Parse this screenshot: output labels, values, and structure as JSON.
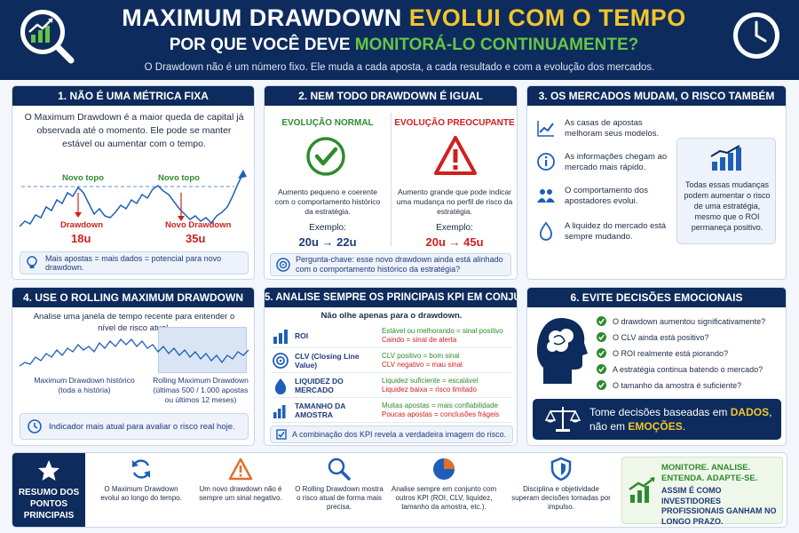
{
  "header": {
    "title_part1": "MAXIMUM DRAWDOWN ",
    "title_part2": "EVOLUI COM O TEMPO",
    "subtitle_part1": "POR QUE VOCÊ DEVE ",
    "subtitle_part2": "MONITORÁ-LO CONTINUAMENTE?",
    "description": "O Drawdown não é um número fixo. Ele muda a cada aposta, a cada resultado e com a evolução dos mercados.",
    "left_icon": "chart-magnifier-icon",
    "right_icon": "clock-icon"
  },
  "panel1": {
    "title": "1. NÃO É UMA MÉTRICA FIXA",
    "text": "O Maximum Drawdown é a maior queda de capital já observada até o momento. Ele pode se manter estável ou aumentar com o tempo.",
    "new_top_1": "Novo topo",
    "new_top_2": "Novo topo",
    "drawdown_label": "Drawdown",
    "drawdown_value": "18u",
    "new_drawdown_label": "Novo Drawdown",
    "new_drawdown_value": "35u",
    "tip": "Mais apostas = mais dados = potencial para novo drawdown."
  },
  "panel2": {
    "title": "2. NEM TODO DRAWDOWN É IGUAL",
    "normal": {
      "title": "EVOLUÇÃO NORMAL",
      "text": "Aumento pequeno e coerente com o comportamento histórico da estratégia.",
      "example_label": "Exemplo:",
      "example_value": "20u → 22u"
    },
    "worrying": {
      "title": "EVOLUÇÃO PREOCUPANTE",
      "text": "Aumento grande que pode indicar uma mudança no perfil de risco da estratégia.",
      "example_label": "Exemplo:",
      "example_value": "20u → 45u"
    },
    "tip": "Pergunta-chave: esse novo drawdown ainda está alinhado com o comportamento histórico da estratégia?"
  },
  "panel3": {
    "title": "3. OS MERCADOS MUDAM, O RISCO TAMBÉM",
    "items": [
      "As casas de apostas melhoram seus modelos.",
      "As informações chegam ao mercado mais rápido.",
      "O comportamento dos apostadores evolui.",
      "A liquidez do mercado está sempre mudando."
    ],
    "box_text": "Todas essas mudanças podem aumentar o risco de uma estratégia, mesmo que o ROI permaneça positivo."
  },
  "panel4": {
    "title": "4. USE O ROLLING MAXIMUM DRAWDOWN",
    "text": "Analise uma janela de tempo recente para entender o nível de risco atual.",
    "historic_label": "Maximum Drawdown histórico",
    "historic_sub": "(toda a história)",
    "rolling_label": "Rolling Maximum Drawdown",
    "rolling_sub": "(últimas 500 / 1.000 apostas ou últimos 12 meses)",
    "tip": "Indicador mais atual para avaliar o risco real hoje."
  },
  "panel5": {
    "title": "5. ANALISE SEMPRE OS PRINCIPAIS KPI EM CONJUNTO",
    "subtitle": "Não olhe apenas para o drawdown.",
    "rows": [
      {
        "name": "ROI",
        "good": "Estável ou melhorando = sinal positivo",
        "bad": "Caindo = sinal de alerta"
      },
      {
        "name": "CLV (Closing Line Value)",
        "good": "CLV positivo = bom sinal",
        "bad": "CLV negativo = mau sinal"
      },
      {
        "name": "LIQUIDEZ DO MERCADO",
        "good": "Liquidez suficiente = escalável",
        "bad": "Liquidez baixa = risco limitado"
      },
      {
        "name": "TAMANHO DA AMOSTRA",
        "good": "Muitas apostas = mais confiabilidade",
        "bad": "Poucas apostas = conclusões frágeis"
      }
    ],
    "tip": "A combinação dos KPI revela a verdadeira imagem do risco."
  },
  "panel6": {
    "title": "6. EVITE DECISÕES EMOCIONAIS",
    "questions": [
      "O drawdown aumentou significativamente?",
      "O CLV ainda está positivo?",
      "O ROI realmente está piorando?",
      "A estratégia continua batendo o mercado?",
      "O tamanho da amostra é suficiente?"
    ],
    "banner_part1": "Tome decisões baseadas em ",
    "banner_data": "DADOS",
    "banner_part2": ", não em ",
    "banner_emotions": "EMOÇÕES",
    "banner_end": "."
  },
  "summary": {
    "title": "RESUMO DOS PONTOS PRINCIPAIS",
    "items": [
      {
        "icon": "refresh-icon",
        "text": "O Maximum Drawdown evolui ao longo do tempo."
      },
      {
        "icon": "warning-icon",
        "text": "Um novo drawdown não é sempre um sinal negativo."
      },
      {
        "icon": "search-icon",
        "text": "O Rolling Drawdown mostra o risco atual de forma mais precisa."
      },
      {
        "icon": "pie-chart-icon",
        "text": "Analise sempre em conjunto com outros KPI (ROI, CLV, liquidez, tamanho da amostra, etc.)."
      },
      {
        "icon": "shield-icon",
        "text": "Disciplina e objetividade superam decisões tomadas por impulso."
      }
    ],
    "final_title": "MONITORE. ANALISE. ENTENDA. ADAPTE-SE.",
    "final_text": "ASSIM É COMO INVESTIDORES PROFISSIONAIS GANHAM NO LONGO PRAZO."
  },
  "colors": {
    "navy": "#0d2b5c",
    "gold": "#f2c52b",
    "green": "#2e8b2e",
    "red": "#d0201e",
    "blue": "#1d5fb8"
  }
}
